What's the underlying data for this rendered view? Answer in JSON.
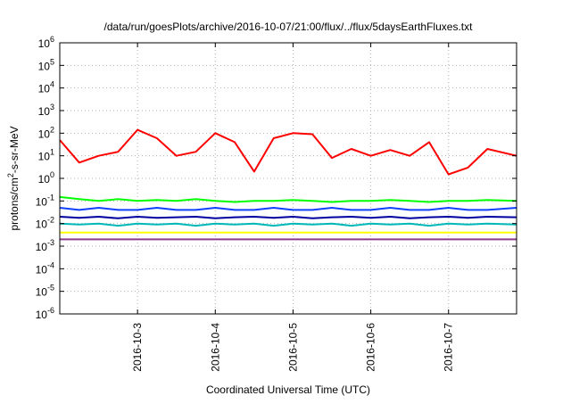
{
  "chart_data": {
    "type": "line",
    "title": "/data/run/goesPlots/archive/2016-10-07/21:00/flux/../flux/5daysEarthFluxes.txt",
    "xlabel": "Coordinated Universal Time (UTC)",
    "ylabel": "protons/cm2-s-sr-MeV",
    "yscale": "log",
    "ylim": [
      1e-06,
      1000000.0
    ],
    "xlim": [
      "2016-10-02",
      "2016-10-07T21:00"
    ],
    "grid": true,
    "legend": "none",
    "y_ticks": [
      {
        "base": "10",
        "exp": "-6"
      },
      {
        "base": "10",
        "exp": "-5"
      },
      {
        "base": "10",
        "exp": "-4"
      },
      {
        "base": "10",
        "exp": "-3"
      },
      {
        "base": "10",
        "exp": "-2"
      },
      {
        "base": "10",
        "exp": "-1"
      },
      {
        "base": "10",
        "exp": "0"
      },
      {
        "base": "10",
        "exp": "1"
      },
      {
        "base": "10",
        "exp": "2"
      },
      {
        "base": "10",
        "exp": "3"
      },
      {
        "base": "10",
        "exp": "4"
      },
      {
        "base": "10",
        "exp": "5"
      },
      {
        "base": "10",
        "exp": "6"
      }
    ],
    "x_ticks": [
      "2016-10-3",
      "2016-10-4",
      "2016-10-5",
      "2016-10-6",
      "2016-10-7"
    ],
    "x_tick_days": [
      1,
      2,
      3,
      4,
      5
    ],
    "x": [
      0.0,
      0.25,
      0.5,
      0.75,
      1.0,
      1.25,
      1.5,
      1.75,
      2.0,
      2.25,
      2.5,
      2.75,
      3.0,
      3.25,
      3.5,
      3.75,
      4.0,
      4.25,
      4.5,
      4.75,
      5.0,
      5.25,
      5.5,
      5.875
    ],
    "x_units": "days since 2016-10-02 00:00 UTC",
    "series": [
      {
        "color": "#ff0000",
        "values": [
          50,
          5,
          10,
          15,
          140,
          60,
          10,
          15,
          100,
          40,
          2,
          60,
          100,
          90,
          8,
          20,
          10,
          18,
          10,
          40,
          1.5,
          3,
          20,
          10
        ]
      },
      {
        "color": "#00ff00",
        "values": [
          0.15,
          0.12,
          0.1,
          0.12,
          0.1,
          0.11,
          0.1,
          0.12,
          0.1,
          0.09,
          0.1,
          0.1,
          0.11,
          0.1,
          0.09,
          0.1,
          0.1,
          0.11,
          0.1,
          0.09,
          0.1,
          0.1,
          0.11,
          0.1
        ]
      },
      {
        "color": "#1040ff",
        "values": [
          0.05,
          0.04,
          0.05,
          0.04,
          0.04,
          0.05,
          0.04,
          0.04,
          0.05,
          0.04,
          0.04,
          0.05,
          0.04,
          0.04,
          0.05,
          0.04,
          0.04,
          0.05,
          0.04,
          0.04,
          0.05,
          0.04,
          0.04,
          0.05
        ]
      },
      {
        "color": "#0000a0",
        "values": [
          0.02,
          0.018,
          0.02,
          0.017,
          0.02,
          0.018,
          0.019,
          0.02,
          0.017,
          0.019,
          0.02,
          0.018,
          0.02,
          0.017,
          0.019,
          0.02,
          0.018,
          0.02,
          0.017,
          0.019,
          0.02,
          0.018,
          0.02,
          0.019
        ]
      },
      {
        "color": "#00b8b8",
        "values": [
          0.01,
          0.009,
          0.01,
          0.008,
          0.01,
          0.009,
          0.01,
          0.008,
          0.01,
          0.009,
          0.01,
          0.008,
          0.01,
          0.009,
          0.01,
          0.008,
          0.01,
          0.009,
          0.01,
          0.008,
          0.01,
          0.009,
          0.01,
          0.009
        ]
      },
      {
        "color": "#ffff00",
        "values": [
          0.004,
          0.004,
          0.004,
          0.004,
          0.004,
          0.004,
          0.004,
          0.004,
          0.004,
          0.004,
          0.004,
          0.004,
          0.004,
          0.004,
          0.004,
          0.004,
          0.004,
          0.004,
          0.004,
          0.004,
          0.004,
          0.004,
          0.004,
          0.004
        ]
      },
      {
        "color": "#8b3a8b",
        "values": [
          0.002,
          0.002,
          0.002,
          0.002,
          0.002,
          0.002,
          0.002,
          0.002,
          0.002,
          0.002,
          0.002,
          0.002,
          0.002,
          0.002,
          0.002,
          0.002,
          0.002,
          0.002,
          0.002,
          0.002,
          0.002,
          0.002,
          0.002,
          0.002
        ]
      }
    ]
  }
}
